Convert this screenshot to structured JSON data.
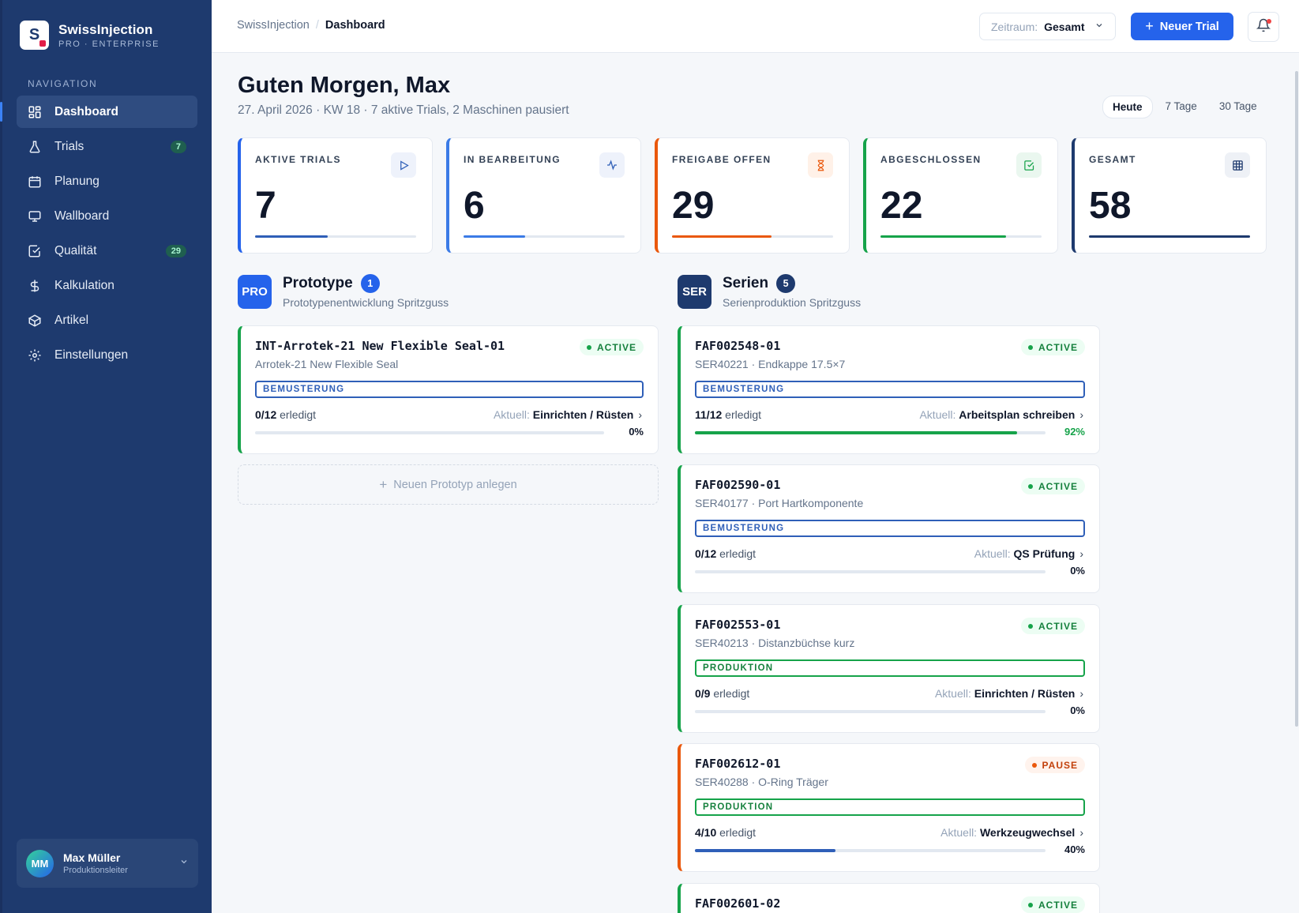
{
  "brand": {
    "name": "SwissInjection",
    "sub": "PRO · ENTERPRISE",
    "logo_letter": "S"
  },
  "nav": {
    "heading": "NAVIGATION",
    "items": [
      {
        "label": "Dashboard",
        "icon": "grid-icon"
      },
      {
        "label": "Trials",
        "icon": "flask-icon",
        "badge": "7"
      },
      {
        "label": "Planung",
        "icon": "calendar-icon"
      },
      {
        "label": "Wallboard",
        "icon": "monitor-icon"
      },
      {
        "label": "Qualität",
        "icon": "check-square-icon",
        "badge": "29"
      },
      {
        "label": "Kalkulation",
        "icon": "dollar-icon"
      },
      {
        "label": "Artikel",
        "icon": "box-icon"
      },
      {
        "label": "Einstellungen",
        "icon": "gear-icon"
      }
    ]
  },
  "user": {
    "initials": "MM",
    "name": "Max Müller",
    "role": "Produktionsleiter"
  },
  "topbar": {
    "breadcrumb": [
      "SwissInjection",
      "Dashboard"
    ],
    "zeitraum_label": "Zeitraum:",
    "zeitraum_value": "Gesamt",
    "new_trial": "Neuer Trial"
  },
  "header": {
    "greeting": "Guten Morgen, Max",
    "subline": "27. April 2026 · KW 18 · 7 aktive Trials, 2 Maschinen pausiert",
    "ranges": [
      "Heute",
      "7 Tage",
      "30 Tage"
    ],
    "selected_range": "Heute"
  },
  "colors": {
    "blue": "#2563eb",
    "orange": "#ea580c",
    "green": "#16a34a",
    "navy": "#1e3a6e"
  },
  "stats": [
    {
      "label": "AKTIVE TRIALS",
      "value": "7",
      "progress": 0.45,
      "icon": "play-icon"
    },
    {
      "label": "IN BEARBEITUNG",
      "value": "6",
      "progress": 0.38,
      "icon": "activity-icon"
    },
    {
      "label": "FREIGABE OFFEN",
      "value": "29",
      "progress": 0.62,
      "icon": "hourglass-icon"
    },
    {
      "label": "ABGESCHLOSSEN",
      "value": "22",
      "progress": 0.78,
      "icon": "check-square-icon"
    },
    {
      "label": "GESAMT",
      "value": "58",
      "progress": 1.0,
      "icon": "table-icon"
    }
  ],
  "prototype": {
    "badge": "PRO",
    "title": "Prototype",
    "count": "1",
    "subtitle": "Prototypenentwicklung Spritzguss",
    "new_label": "Neuen Prototyp anlegen",
    "trials": [
      {
        "id": "INT-Arrotek-21 New Flexible Seal-01",
        "desc": "Arrotek-21 New Flexible Seal",
        "status": "ACTIVE",
        "phase": "BEMUSTERUNG",
        "done": "0/12",
        "done_label": "erledigt",
        "aktuell_label": "Aktuell:",
        "aktuell": "Einrichten / Rüsten",
        "progress": 0,
        "pct": "0%"
      }
    ]
  },
  "serien": {
    "badge": "SER",
    "title": "Serien",
    "count": "5",
    "subtitle": "Serienproduktion Spritzguss",
    "trials": [
      {
        "id": "FAF002548-01",
        "desc": "SER40221 · Endkappe 17.5×7",
        "status": "ACTIVE",
        "phase": "BEMUSTERUNG",
        "done": "11/12",
        "done_label": "erledigt",
        "aktuell_label": "Aktuell:",
        "aktuell": "Arbeitsplan schreiben",
        "progress": 0.92,
        "pct": "92%"
      },
      {
        "id": "FAF002590-01",
        "desc": "SER40177 · Port Hartkomponente",
        "status": "ACTIVE",
        "phase": "BEMUSTERUNG",
        "done": "0/12",
        "done_label": "erledigt",
        "aktuell_label": "Aktuell:",
        "aktuell": "QS Prüfung",
        "progress": 0,
        "pct": "0%"
      },
      {
        "id": "FAF002553-01",
        "desc": "SER40213 · Distanzbüchse kurz",
        "status": "ACTIVE",
        "phase": "PRODUKTION",
        "done": "0/9",
        "done_label": "erledigt",
        "aktuell_label": "Aktuell:",
        "aktuell": "Einrichten / Rüsten",
        "progress": 0,
        "pct": "0%"
      },
      {
        "id": "FAF002612-01",
        "desc": "SER40288 · O-Ring Träger",
        "status": "PAUSE",
        "phase": "PRODUKTION",
        "done": "4/10",
        "done_label": "erledigt",
        "aktuell_label": "Aktuell:",
        "aktuell": "Werkzeugwechsel",
        "progress": 0.4,
        "pct": "40%"
      },
      {
        "id": "FAF002601-02",
        "status": "ACTIVE"
      }
    ]
  }
}
